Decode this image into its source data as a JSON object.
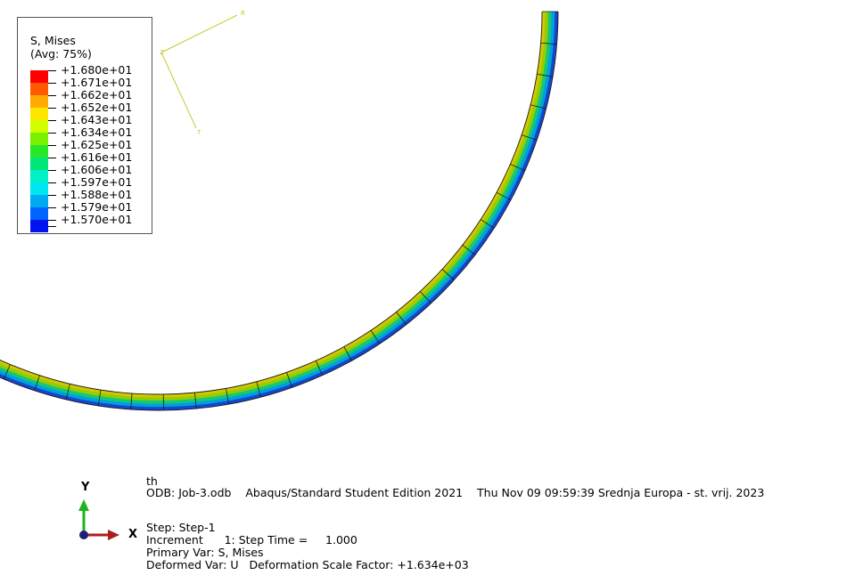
{
  "legend": {
    "title_line1": "S, Mises",
    "title_line2": "(Avg: 75%)",
    "levels": [
      {
        "label": "+1.680e+01",
        "color": "#ff0000"
      },
      {
        "label": "+1.671e+01",
        "color": "#ff5a00"
      },
      {
        "label": "+1.662e+01",
        "color": "#ffaa00"
      },
      {
        "label": "+1.652e+01",
        "color": "#ffe600"
      },
      {
        "label": "+1.643e+01",
        "color": "#d2ff00"
      },
      {
        "label": "+1.634e+01",
        "color": "#78f000"
      },
      {
        "label": "+1.625e+01",
        "color": "#28e628"
      },
      {
        "label": "+1.616e+01",
        "color": "#00e678"
      },
      {
        "label": "+1.606e+01",
        "color": "#00f0c8"
      },
      {
        "label": "+1.597e+01",
        "color": "#00e6f0"
      },
      {
        "label": "+1.588e+01",
        "color": "#00aaf0"
      },
      {
        "label": "+1.579e+01",
        "color": "#0064ff"
      },
      {
        "label": "+1.570e+01",
        "color": "#0014f0"
      }
    ]
  },
  "local_csys": {
    "axis_labels": [
      "R",
      "Z",
      "T"
    ],
    "color": "#c8c832"
  },
  "info": {
    "model_name": "th",
    "odb_line": "ODB: Job-3.odb    Abaqus/Standard Student Edition 2021    Thu Nov 09 09:59:39 Srednja Europa - st. vrij. 2023",
    "step_line": "Step: Step-1",
    "increment_line": "Increment      1: Step Time =     1.000",
    "primary_var_line": "Primary Var: S, Mises",
    "deformed_var_line": "Deformed Var: U   Deformation Scale Factor: +1.634e+03"
  },
  "triad": {
    "x_label": "X",
    "y_label": "Y",
    "x_color": "#aa1e1e",
    "y_color": "#1eb41e",
    "origin_color": "#1e1e78"
  },
  "ring": {
    "band_colors": [
      "#d2c800",
      "#96cd00",
      "#14c878",
      "#00a0dc",
      "#1446d2"
    ]
  }
}
